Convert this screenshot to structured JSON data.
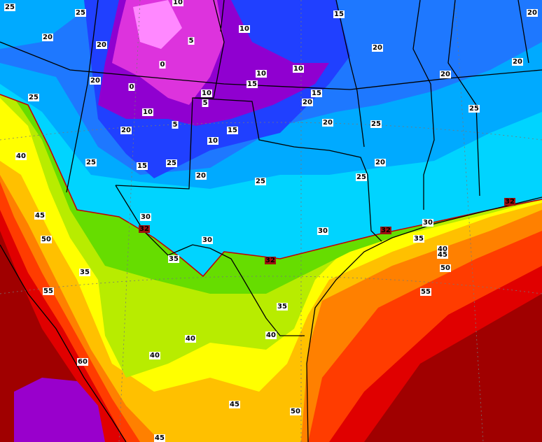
{
  "map": {
    "contour_labels": [
      25,
      25,
      20,
      20,
      10,
      5,
      0,
      0,
      10,
      15,
      20,
      20,
      20,
      20,
      10,
      10,
      15,
      10,
      5,
      15,
      20,
      20,
      25,
      10,
      5,
      20,
      15,
      10,
      20,
      25,
      25,
      40,
      25,
      15,
      25,
      20,
      25,
      25,
      20,
      45,
      30,
      32,
      30,
      30,
      32,
      30,
      35,
      32,
      50,
      35,
      32,
      40,
      45,
      35,
      50,
      55,
      35,
      55,
      40,
      40,
      40,
      60,
      45,
      50,
      45
    ]
  }
}
